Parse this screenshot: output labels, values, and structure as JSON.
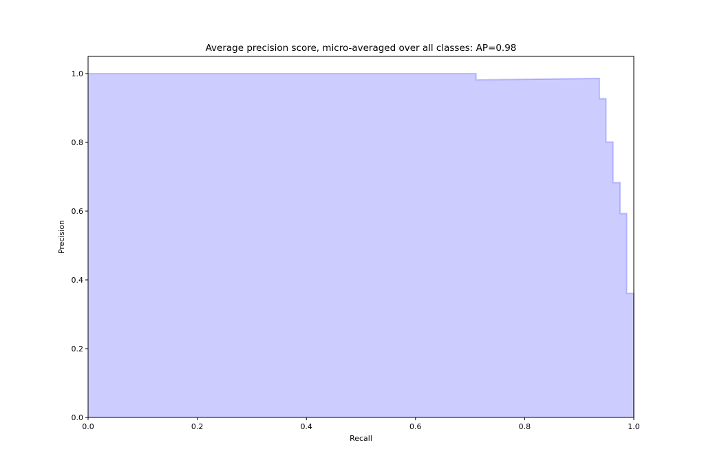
{
  "chart_data": {
    "type": "area",
    "title": "Average precision score, micro-averaged over all classes: AP=0.98",
    "xlabel": "Recall",
    "ylabel": "Precision",
    "xlim": [
      0.0,
      1.0
    ],
    "ylim": [
      0.0,
      1.05
    ],
    "grid": false,
    "step": "post",
    "xticks": [
      "0.0",
      "0.2",
      "0.4",
      "0.6",
      "0.8",
      "1.0"
    ],
    "yticks": [
      "0.0",
      "0.2",
      "0.4",
      "0.6",
      "0.8",
      "1.0"
    ],
    "series": [
      {
        "recall": [
          0.0,
          0.711,
          0.711,
          0.937,
          0.937,
          0.949,
          0.949,
          0.962,
          0.962,
          0.975,
          0.975,
          0.987,
          0.987,
          1.0,
          1.0
        ],
        "precision": [
          1.0,
          1.0,
          0.982,
          0.986,
          0.927,
          0.927,
          0.801,
          0.801,
          0.683,
          0.683,
          0.593,
          0.593,
          0.361,
          0.361,
          0.0
        ],
        "color": "#0000ff",
        "fill_color": "#ccccff"
      }
    ]
  }
}
